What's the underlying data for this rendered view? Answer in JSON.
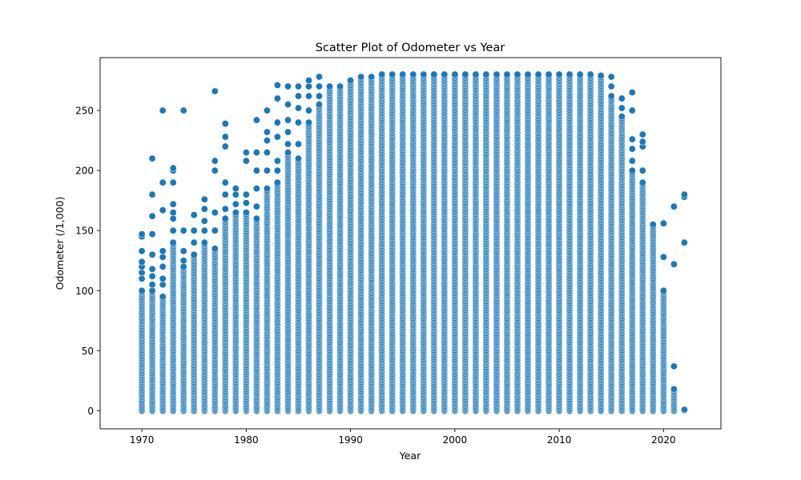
{
  "chart_data": {
    "type": "scatter",
    "title": "Scatter Plot of Odometer vs Year",
    "xlabel": "Year",
    "ylabel": "Odometer (/1,000)",
    "xlim": [
      1966,
      2025.5
    ],
    "ylim": [
      -15,
      294
    ],
    "x_ticks": [
      1970,
      1980,
      1990,
      2000,
      2010,
      2020
    ],
    "y_ticks": [
      0,
      50,
      100,
      150,
      200,
      250
    ],
    "grid": false,
    "legend": "none",
    "marker_color": "#1f77b4",
    "marker_edge_color": "#ffffff",
    "series": [
      {
        "columns": [
          {
            "x": 1970,
            "band": [
              0,
              100
            ],
            "outliers": [
              110,
              115,
              120,
              124,
              133,
              145,
              147
            ]
          },
          {
            "x": 1971,
            "band": [
              0,
              100
            ],
            "outliers": [
              105,
              112,
              118,
              130,
              147,
              162,
              180,
              210
            ]
          },
          {
            "x": 1972,
            "band": [
              0,
              95
            ],
            "outliers": [
              105,
              110,
              120,
              128,
              133,
              167,
              190,
              250
            ]
          },
          {
            "x": 1973,
            "band": [
              0,
              140
            ],
            "outliers": [
              150,
              160,
              165,
              172,
              190,
              200,
              202
            ]
          },
          {
            "x": 1974,
            "band": [
              0,
              120
            ],
            "outliers": [
              125,
              133,
              150,
              250
            ]
          },
          {
            "x": 1975,
            "band": [
              0,
              130
            ],
            "outliers": [
              140,
              150,
              163
            ]
          },
          {
            "x": 1976,
            "band": [
              0,
              140
            ],
            "outliers": [
              150,
              158,
              168,
              176
            ]
          },
          {
            "x": 1977,
            "band": [
              0,
              135
            ],
            "outliers": [
              150,
              165,
              200,
              208,
              266
            ]
          },
          {
            "x": 1978,
            "band": [
              0,
              160
            ],
            "outliers": [
              168,
              180,
              190,
              220,
              228,
              239
            ]
          },
          {
            "x": 1979,
            "band": [
              0,
              165
            ],
            "outliers": [
              172,
              180,
              185
            ]
          },
          {
            "x": 1980,
            "band": [
              0,
              165
            ],
            "outliers": [
              173,
              180,
              208,
              215
            ]
          },
          {
            "x": 1981,
            "band": [
              0,
              160
            ],
            "outliers": [
              170,
              185,
              200,
              215,
              242
            ]
          },
          {
            "x": 1982,
            "band": [
              0,
              185
            ],
            "outliers": [
              200,
              215,
              225,
              232,
              250
            ]
          },
          {
            "x": 1983,
            "band": [
              0,
              190
            ],
            "outliers": [
              200,
              208,
              228,
              240,
              260,
              271
            ]
          },
          {
            "x": 1984,
            "band": [
              0,
              215
            ],
            "outliers": [
              222,
              232,
              242,
              255,
              270
            ]
          },
          {
            "x": 1985,
            "band": [
              0,
              210
            ],
            "outliers": [
              222,
              240,
              252,
              262,
              270
            ]
          },
          {
            "x": 1986,
            "band": [
              0,
              240
            ],
            "outliers": [
              250,
              262,
              270,
              275
            ]
          },
          {
            "x": 1987,
            "band": [
              0,
              255
            ],
            "outliers": [
              262,
              270,
              278
            ]
          },
          {
            "x": 1988,
            "band": [
              0,
              270
            ],
            "outliers": []
          },
          {
            "x": 1989,
            "band": [
              0,
              270
            ],
            "outliers": []
          },
          {
            "x": 1990,
            "band": [
              0,
              275
            ],
            "outliers": []
          },
          {
            "x": 1991,
            "band": [
              0,
              278
            ],
            "outliers": []
          },
          {
            "x": 1992,
            "band": [
              0,
              278
            ],
            "outliers": []
          },
          {
            "x": 1993,
            "band": [
              0,
              280
            ],
            "outliers": []
          },
          {
            "x": 1994,
            "band": [
              0,
              280
            ],
            "outliers": []
          },
          {
            "x": 1995,
            "band": [
              0,
              280
            ],
            "outliers": []
          },
          {
            "x": 1996,
            "band": [
              0,
              280
            ],
            "outliers": []
          },
          {
            "x": 1997,
            "band": [
              0,
              280
            ],
            "outliers": []
          },
          {
            "x": 1998,
            "band": [
              0,
              280
            ],
            "outliers": []
          },
          {
            "x": 1999,
            "band": [
              0,
              280
            ],
            "outliers": []
          },
          {
            "x": 2000,
            "band": [
              0,
              280
            ],
            "outliers": []
          },
          {
            "x": 2001,
            "band": [
              0,
              280
            ],
            "outliers": []
          },
          {
            "x": 2002,
            "band": [
              0,
              280
            ],
            "outliers": []
          },
          {
            "x": 2003,
            "band": [
              0,
              280
            ],
            "outliers": []
          },
          {
            "x": 2004,
            "band": [
              0,
              280
            ],
            "outliers": []
          },
          {
            "x": 2005,
            "band": [
              0,
              280
            ],
            "outliers": []
          },
          {
            "x": 2006,
            "band": [
              0,
              280
            ],
            "outliers": []
          },
          {
            "x": 2007,
            "band": [
              0,
              280
            ],
            "outliers": []
          },
          {
            "x": 2008,
            "band": [
              0,
              280
            ],
            "outliers": []
          },
          {
            "x": 2009,
            "band": [
              0,
              280
            ],
            "outliers": []
          },
          {
            "x": 2010,
            "band": [
              0,
              280
            ],
            "outliers": []
          },
          {
            "x": 2011,
            "band": [
              0,
              280
            ],
            "outliers": []
          },
          {
            "x": 2012,
            "band": [
              0,
              280
            ],
            "outliers": []
          },
          {
            "x": 2013,
            "band": [
              0,
              280
            ],
            "outliers": []
          },
          {
            "x": 2014,
            "band": [
              0,
              279
            ],
            "outliers": []
          },
          {
            "x": 2015,
            "band": [
              0,
              262
            ],
            "outliers": [
              270,
              278
            ]
          },
          {
            "x": 2016,
            "band": [
              0,
              245
            ],
            "outliers": [
              252,
              260
            ]
          },
          {
            "x": 2017,
            "band": [
              0,
              200
            ],
            "outliers": [
              208,
              218,
              226,
              250,
              265
            ]
          },
          {
            "x": 2018,
            "band": [
              0,
              190
            ],
            "outliers": [
              200,
              220,
              224,
              230
            ]
          },
          {
            "x": 2019,
            "band": [
              0,
              155
            ],
            "outliers": []
          },
          {
            "x": 2020,
            "band": [
              0,
              100
            ],
            "outliers": [
              128,
              156
            ]
          },
          {
            "x": 2021,
            "band": [
              0,
              18
            ],
            "outliers": [
              37,
              122,
              170
            ]
          },
          {
            "x": 2022,
            "band": [
              0,
              1
            ],
            "outliers": [
              140,
              178,
              180
            ]
          }
        ]
      }
    ]
  }
}
